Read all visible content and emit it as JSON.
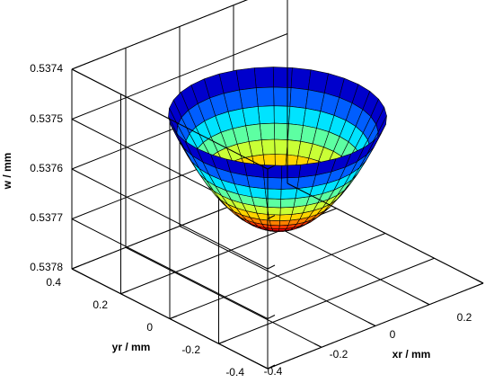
{
  "chart_data": {
    "type": "surface",
    "zlabel": "w / mm",
    "xlabel": "xr / mm",
    "ylabel": "yr / mm",
    "z_ticks": [
      "0.5374",
      "0.5375",
      "0.5376",
      "0.5377",
      "0.5378"
    ],
    "x_ticks": [
      "-0.4",
      "-0.2",
      "0",
      "0.2"
    ],
    "y_ticks": [
      "-0.4",
      "-0.2",
      "0",
      "0.2",
      "0.4"
    ],
    "z_direction": "reversed",
    "surface": {
      "shape": "paraboloid bowl",
      "radius_mm": 0.3,
      "w_center_mm": 0.5377,
      "w_rim_mm": 0.53748,
      "radial_mesh_lines": 13,
      "angular_mesh_lines": 36,
      "colormap": "jet",
      "grid": "on"
    }
  }
}
